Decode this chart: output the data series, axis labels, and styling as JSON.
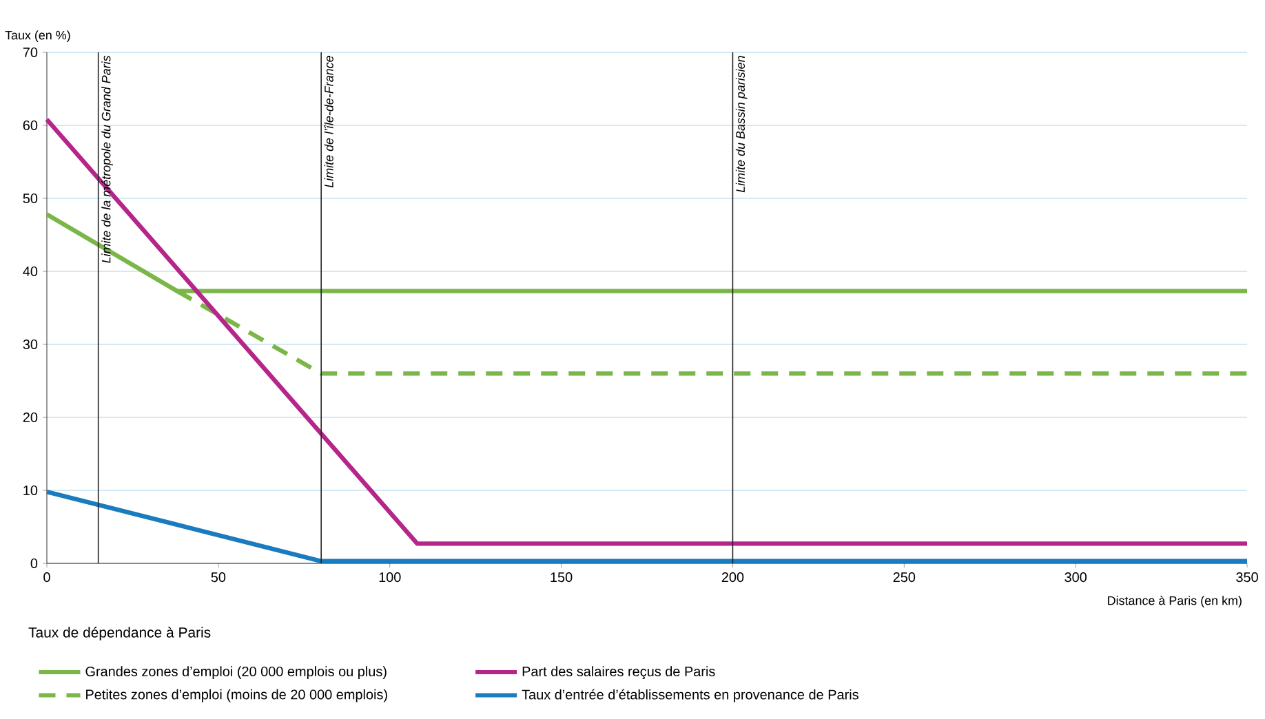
{
  "chart_data": {
    "type": "line",
    "ylabel": "Taux (en %)",
    "xlabel": "Distance à Paris (en km)",
    "legend_title": "Taux de dépendance à Paris",
    "xlim": [
      0,
      350
    ],
    "xticks": [
      0,
      50,
      100,
      150,
      200,
      250,
      300,
      350
    ],
    "ylim": [
      0,
      70
    ],
    "yticks": [
      0,
      10,
      20,
      30,
      40,
      50,
      60,
      70
    ],
    "grid": "y",
    "legend": "bottom",
    "marker": "none",
    "series": [
      {
        "name": "Grandes zones d’emploi (20 000 emplois ou plus)",
        "color": "#7ab648",
        "line_style": "solid",
        "x": [
          0,
          38,
          350
        ],
        "values": [
          47.8,
          37.3,
          37.3
        ]
      },
      {
        "name": "Petites zones d’emploi (moins de 20 000 emplois)",
        "color": "#7ab648",
        "line_style": "dashed",
        "x": [
          38,
          80,
          350
        ],
        "values": [
          37.3,
          26,
          26
        ]
      },
      {
        "name": "Part des salaires reçus de Paris",
        "color": "#b5258a",
        "line_style": "solid",
        "x": [
          0,
          108,
          350
        ],
        "values": [
          60.8,
          2.7,
          2.7
        ]
      },
      {
        "name": "Taux d’entrée d’établissements en provenance de Paris",
        "color": "#1a7bbf",
        "line_style": "solid",
        "x": [
          0,
          80,
          350
        ],
        "values": [
          9.8,
          0.3,
          0.3
        ]
      }
    ],
    "ref_lines": [
      {
        "axis": "x",
        "value": 15,
        "label": "Limite de la métropole du Grand Paris",
        "color": "#222222"
      },
      {
        "axis": "x",
        "value": 80,
        "label": "Limite de l’île-de-France",
        "color": "#222222"
      },
      {
        "axis": "x",
        "value": 200,
        "label": "Limite du Bassin parisien",
        "color": "#222222"
      }
    ]
  }
}
